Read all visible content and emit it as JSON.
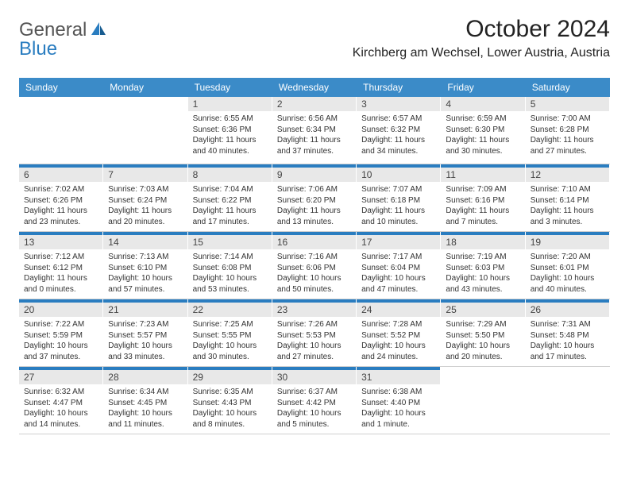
{
  "logo": {
    "text1": "General",
    "text2": "Blue"
  },
  "title": "October 2024",
  "location": "Kirchberg am Wechsel, Lower Austria, Austria",
  "colors": {
    "header_bg": "#3b8bc8",
    "accent": "#2a7dc0",
    "daynum_bg": "#e8e8e8",
    "text": "#222222",
    "body_text": "#333333"
  },
  "days_of_week": [
    "Sunday",
    "Monday",
    "Tuesday",
    "Wednesday",
    "Thursday",
    "Friday",
    "Saturday"
  ],
  "weeks": [
    [
      null,
      null,
      {
        "n": "1",
        "sr": "Sunrise: 6:55 AM",
        "ss": "Sunset: 6:36 PM",
        "dl1": "Daylight: 11 hours",
        "dl2": "and 40 minutes."
      },
      {
        "n": "2",
        "sr": "Sunrise: 6:56 AM",
        "ss": "Sunset: 6:34 PM",
        "dl1": "Daylight: 11 hours",
        "dl2": "and 37 minutes."
      },
      {
        "n": "3",
        "sr": "Sunrise: 6:57 AM",
        "ss": "Sunset: 6:32 PM",
        "dl1": "Daylight: 11 hours",
        "dl2": "and 34 minutes."
      },
      {
        "n": "4",
        "sr": "Sunrise: 6:59 AM",
        "ss": "Sunset: 6:30 PM",
        "dl1": "Daylight: 11 hours",
        "dl2": "and 30 minutes."
      },
      {
        "n": "5",
        "sr": "Sunrise: 7:00 AM",
        "ss": "Sunset: 6:28 PM",
        "dl1": "Daylight: 11 hours",
        "dl2": "and 27 minutes."
      }
    ],
    [
      {
        "n": "6",
        "sr": "Sunrise: 7:02 AM",
        "ss": "Sunset: 6:26 PM",
        "dl1": "Daylight: 11 hours",
        "dl2": "and 23 minutes."
      },
      {
        "n": "7",
        "sr": "Sunrise: 7:03 AM",
        "ss": "Sunset: 6:24 PM",
        "dl1": "Daylight: 11 hours",
        "dl2": "and 20 minutes."
      },
      {
        "n": "8",
        "sr": "Sunrise: 7:04 AM",
        "ss": "Sunset: 6:22 PM",
        "dl1": "Daylight: 11 hours",
        "dl2": "and 17 minutes."
      },
      {
        "n": "9",
        "sr": "Sunrise: 7:06 AM",
        "ss": "Sunset: 6:20 PM",
        "dl1": "Daylight: 11 hours",
        "dl2": "and 13 minutes."
      },
      {
        "n": "10",
        "sr": "Sunrise: 7:07 AM",
        "ss": "Sunset: 6:18 PM",
        "dl1": "Daylight: 11 hours",
        "dl2": "and 10 minutes."
      },
      {
        "n": "11",
        "sr": "Sunrise: 7:09 AM",
        "ss": "Sunset: 6:16 PM",
        "dl1": "Daylight: 11 hours",
        "dl2": "and 7 minutes."
      },
      {
        "n": "12",
        "sr": "Sunrise: 7:10 AM",
        "ss": "Sunset: 6:14 PM",
        "dl1": "Daylight: 11 hours",
        "dl2": "and 3 minutes."
      }
    ],
    [
      {
        "n": "13",
        "sr": "Sunrise: 7:12 AM",
        "ss": "Sunset: 6:12 PM",
        "dl1": "Daylight: 11 hours",
        "dl2": "and 0 minutes."
      },
      {
        "n": "14",
        "sr": "Sunrise: 7:13 AM",
        "ss": "Sunset: 6:10 PM",
        "dl1": "Daylight: 10 hours",
        "dl2": "and 57 minutes."
      },
      {
        "n": "15",
        "sr": "Sunrise: 7:14 AM",
        "ss": "Sunset: 6:08 PM",
        "dl1": "Daylight: 10 hours",
        "dl2": "and 53 minutes."
      },
      {
        "n": "16",
        "sr": "Sunrise: 7:16 AM",
        "ss": "Sunset: 6:06 PM",
        "dl1": "Daylight: 10 hours",
        "dl2": "and 50 minutes."
      },
      {
        "n": "17",
        "sr": "Sunrise: 7:17 AM",
        "ss": "Sunset: 6:04 PM",
        "dl1": "Daylight: 10 hours",
        "dl2": "and 47 minutes."
      },
      {
        "n": "18",
        "sr": "Sunrise: 7:19 AM",
        "ss": "Sunset: 6:03 PM",
        "dl1": "Daylight: 10 hours",
        "dl2": "and 43 minutes."
      },
      {
        "n": "19",
        "sr": "Sunrise: 7:20 AM",
        "ss": "Sunset: 6:01 PM",
        "dl1": "Daylight: 10 hours",
        "dl2": "and 40 minutes."
      }
    ],
    [
      {
        "n": "20",
        "sr": "Sunrise: 7:22 AM",
        "ss": "Sunset: 5:59 PM",
        "dl1": "Daylight: 10 hours",
        "dl2": "and 37 minutes."
      },
      {
        "n": "21",
        "sr": "Sunrise: 7:23 AM",
        "ss": "Sunset: 5:57 PM",
        "dl1": "Daylight: 10 hours",
        "dl2": "and 33 minutes."
      },
      {
        "n": "22",
        "sr": "Sunrise: 7:25 AM",
        "ss": "Sunset: 5:55 PM",
        "dl1": "Daylight: 10 hours",
        "dl2": "and 30 minutes."
      },
      {
        "n": "23",
        "sr": "Sunrise: 7:26 AM",
        "ss": "Sunset: 5:53 PM",
        "dl1": "Daylight: 10 hours",
        "dl2": "and 27 minutes."
      },
      {
        "n": "24",
        "sr": "Sunrise: 7:28 AM",
        "ss": "Sunset: 5:52 PM",
        "dl1": "Daylight: 10 hours",
        "dl2": "and 24 minutes."
      },
      {
        "n": "25",
        "sr": "Sunrise: 7:29 AM",
        "ss": "Sunset: 5:50 PM",
        "dl1": "Daylight: 10 hours",
        "dl2": "and 20 minutes."
      },
      {
        "n": "26",
        "sr": "Sunrise: 7:31 AM",
        "ss": "Sunset: 5:48 PM",
        "dl1": "Daylight: 10 hours",
        "dl2": "and 17 minutes."
      }
    ],
    [
      {
        "n": "27",
        "sr": "Sunrise: 6:32 AM",
        "ss": "Sunset: 4:47 PM",
        "dl1": "Daylight: 10 hours",
        "dl2": "and 14 minutes."
      },
      {
        "n": "28",
        "sr": "Sunrise: 6:34 AM",
        "ss": "Sunset: 4:45 PM",
        "dl1": "Daylight: 10 hours",
        "dl2": "and 11 minutes."
      },
      {
        "n": "29",
        "sr": "Sunrise: 6:35 AM",
        "ss": "Sunset: 4:43 PM",
        "dl1": "Daylight: 10 hours",
        "dl2": "and 8 minutes."
      },
      {
        "n": "30",
        "sr": "Sunrise: 6:37 AM",
        "ss": "Sunset: 4:42 PM",
        "dl1": "Daylight: 10 hours",
        "dl2": "and 5 minutes."
      },
      {
        "n": "31",
        "sr": "Sunrise: 6:38 AM",
        "ss": "Sunset: 4:40 PM",
        "dl1": "Daylight: 10 hours",
        "dl2": "and 1 minute."
      },
      null,
      null
    ]
  ]
}
